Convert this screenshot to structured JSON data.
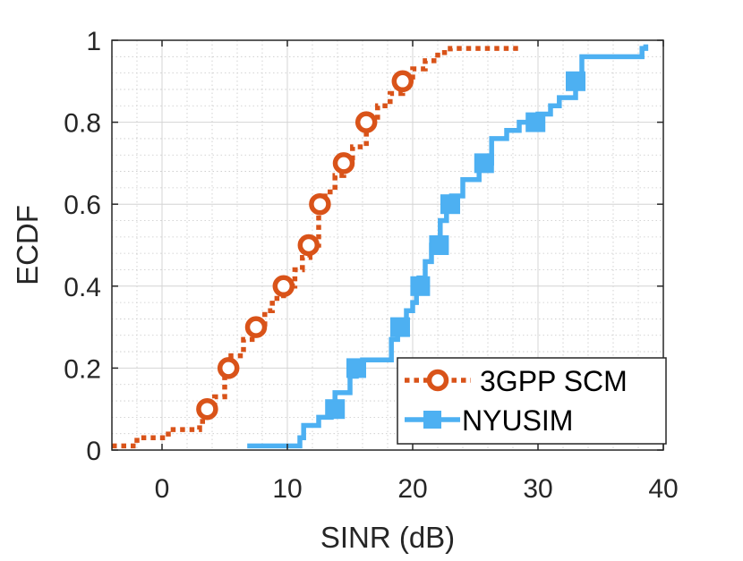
{
  "chart_data": {
    "type": "line",
    "xlabel": "SINR (dB)",
    "ylabel": "ECDF",
    "xlim": [
      -4,
      40
    ],
    "ylim": [
      0,
      1
    ],
    "xticks": [
      0,
      10,
      20,
      30,
      40
    ],
    "yticks": [
      0,
      0.2,
      0.4,
      0.6,
      0.8,
      1
    ],
    "ytick_labels": [
      "0",
      "0.2",
      "0.4",
      "0.6",
      "0.8",
      "1"
    ],
    "grid": true,
    "minor_grid": true,
    "legend_position": "bottom-right",
    "series": [
      {
        "name": "3GPP SCM",
        "color": "#d95319",
        "line_style": "dotted",
        "marker": "circle",
        "step": true,
        "x": [
          -4,
          -2,
          0.5,
          3,
          3.6,
          4.2,
          5,
          5.5,
          6.5,
          7.5,
          8.2,
          8.8,
          9.7,
          10.6,
          11.2,
          11.8,
          12.5,
          13,
          13.8,
          14.5,
          15.2,
          16.3,
          17.2,
          18.2,
          19.2,
          20,
          21,
          22,
          23,
          23.5,
          28.5
        ],
        "y": [
          0.01,
          0.03,
          0.05,
          0.07,
          0.1,
          0.13,
          0.2,
          0.23,
          0.27,
          0.3,
          0.34,
          0.37,
          0.4,
          0.44,
          0.47,
          0.5,
          0.6,
          0.63,
          0.67,
          0.7,
          0.74,
          0.8,
          0.84,
          0.87,
          0.9,
          0.93,
          0.95,
          0.97,
          0.98,
          0.98,
          0.98
        ],
        "marker_x": [
          3.6,
          5.3,
          7.5,
          9.7,
          11.7,
          12.6,
          14.5,
          16.3,
          19.2
        ],
        "marker_y": [
          0.1,
          0.2,
          0.3,
          0.4,
          0.5,
          0.6,
          0.7,
          0.8,
          0.9
        ]
      },
      {
        "name": "NYUSIM",
        "color": "#4db0f2",
        "line_style": "solid",
        "marker": "square",
        "step": true,
        "x": [
          6.8,
          11,
          11.3,
          12.5,
          13.5,
          13.8,
          15,
          15.5,
          16,
          17,
          18.3,
          18.8,
          19.5,
          20,
          20.3,
          20.5,
          21,
          21.5,
          22.2,
          22.7,
          23.1,
          24,
          25.3,
          26.3,
          27.5,
          28.5,
          30,
          31,
          31.7,
          33,
          33.5,
          38,
          38.3,
          38.6
        ],
        "y": [
          0.01,
          0.03,
          0.06,
          0.08,
          0.1,
          0.14,
          0.18,
          0.2,
          0.22,
          0.22,
          0.27,
          0.3,
          0.34,
          0.36,
          0.4,
          0.42,
          0.46,
          0.5,
          0.56,
          0.6,
          0.62,
          0.66,
          0.7,
          0.76,
          0.78,
          0.8,
          0.82,
          0.84,
          0.86,
          0.9,
          0.96,
          0.96,
          0.98,
          0.99
        ],
        "marker_x": [
          13.8,
          15.5,
          19,
          20.6,
          22.1,
          23,
          25.7,
          29.8,
          33
        ],
        "marker_y": [
          0.1,
          0.2,
          0.3,
          0.4,
          0.5,
          0.6,
          0.7,
          0.8,
          0.9
        ]
      }
    ]
  }
}
